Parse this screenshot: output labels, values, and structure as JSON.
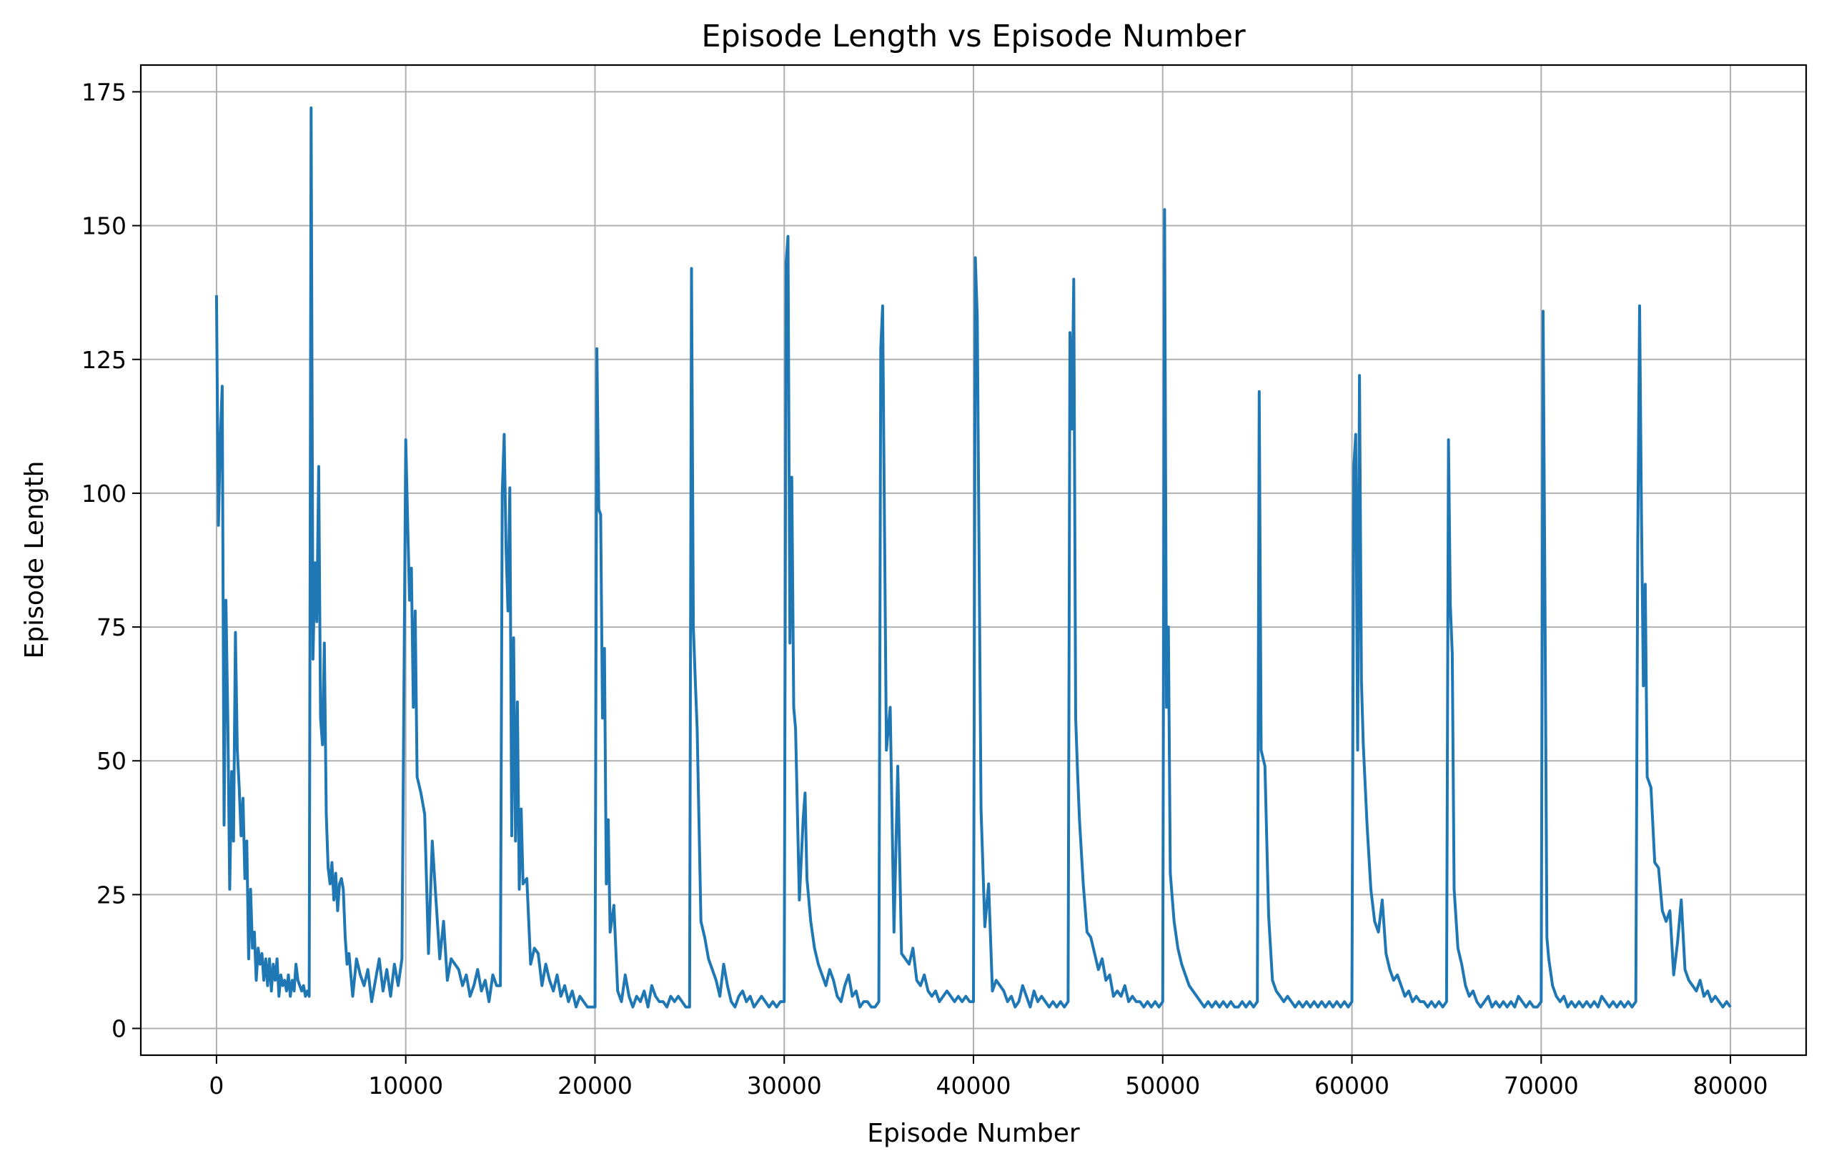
{
  "chart_data": {
    "type": "line",
    "title": "Episode Length vs Episode Number",
    "xlabel": "Episode Number",
    "ylabel": "Episode Length",
    "xlim": [
      -4000,
      84000
    ],
    "ylim": [
      -5,
      180
    ],
    "xticks": [
      0,
      10000,
      20000,
      30000,
      40000,
      50000,
      60000,
      70000,
      80000
    ],
    "xtick_labels": [
      "0",
      "10000",
      "20000",
      "30000",
      "40000",
      "50000",
      "60000",
      "70000",
      "80000"
    ],
    "yticks": [
      0,
      25,
      50,
      75,
      100,
      125,
      150,
      175
    ],
    "ytick_labels": [
      "0",
      "25",
      "50",
      "75",
      "100",
      "125",
      "150",
      "175"
    ],
    "grid": true,
    "line_color": "#1f77b4",
    "series": [
      {
        "x": [
          0,
          100,
          200,
          300,
          400,
          500,
          600,
          700,
          800,
          900,
          1000,
          1100,
          1200,
          1300,
          1400,
          1500,
          1600,
          1700,
          1800,
          1900,
          2000,
          2100,
          2200,
          2300,
          2400,
          2500,
          2600,
          2700,
          2800,
          2900,
          3000,
          3100,
          3200,
          3300,
          3400,
          3500,
          3600,
          3700,
          3800,
          3900,
          4000,
          4100,
          4200,
          4300,
          4400,
          4500,
          4600,
          4700,
          4800,
          4900,
          5000,
          5100,
          5200,
          5300,
          5400,
          5500,
          5600,
          5700,
          5800,
          5900,
          6000,
          6100,
          6200,
          6300,
          6400,
          6500,
          6600,
          6700,
          6800,
          6900,
          7000,
          7200,
          7400,
          7600,
          7800,
          8000,
          8200,
          8400,
          8600,
          8800,
          9000,
          9200,
          9400,
          9600,
          9800,
          10000,
          10100,
          10200,
          10300,
          10400,
          10500,
          10600,
          10800,
          11000,
          11200,
          11400,
          11600,
          11800,
          12000,
          12200,
          12400,
          12600,
          12800,
          13000,
          13200,
          13400,
          13600,
          13800,
          14000,
          14200,
          14400,
          14600,
          14800,
          15000,
          15100,
          15200,
          15300,
          15400,
          15500,
          15600,
          15700,
          15800,
          15900,
          16000,
          16100,
          16200,
          16400,
          16600,
          16800,
          17000,
          17200,
          17400,
          17600,
          17800,
          18000,
          18200,
          18400,
          18600,
          18800,
          19000,
          19200,
          19400,
          19600,
          19800,
          20000,
          20100,
          20200,
          20300,
          20400,
          20500,
          20600,
          20700,
          20800,
          21000,
          21200,
          21400,
          21600,
          21800,
          22000,
          22200,
          22400,
          22600,
          22800,
          23000,
          23200,
          23400,
          23600,
          23800,
          24000,
          24200,
          24400,
          24600,
          24800,
          25000,
          25100,
          25200,
          25300,
          25400,
          25600,
          25800,
          26000,
          26200,
          26400,
          26600,
          26800,
          27000,
          27200,
          27400,
          27600,
          27800,
          28000,
          28200,
          28400,
          28600,
          28800,
          29000,
          29200,
          29400,
          29600,
          29800,
          30000,
          30100,
          30200,
          30300,
          30400,
          30500,
          30600,
          30800,
          31000,
          31100,
          31200,
          31400,
          31600,
          31800,
          32000,
          32200,
          32400,
          32600,
          32800,
          33000,
          33200,
          33400,
          33600,
          33800,
          34000,
          34200,
          34400,
          34600,
          34800,
          35000,
          35100,
          35200,
          35400,
          35600,
          35800,
          36000,
          36200,
          36400,
          36600,
          36800,
          37000,
          37200,
          37400,
          37600,
          37800,
          38000,
          38200,
          38400,
          38600,
          38800,
          39000,
          39200,
          39400,
          39600,
          39800,
          40000,
          40100,
          40200,
          40400,
          40600,
          40800,
          41000,
          41200,
          41400,
          41600,
          41800,
          42000,
          42200,
          42400,
          42600,
          42800,
          43000,
          43200,
          43400,
          43600,
          43800,
          44000,
          44200,
          44400,
          44600,
          44800,
          45000,
          45100,
          45200,
          45300,
          45400,
          45500,
          45600,
          45800,
          46000,
          46200,
          46400,
          46600,
          46800,
          47000,
          47200,
          47400,
          47600,
          47800,
          48000,
          48200,
          48400,
          48600,
          48800,
          49000,
          49200,
          49400,
          49600,
          49800,
          50000,
          50100,
          50200,
          50300,
          50400,
          50600,
          50800,
          51000,
          51200,
          51400,
          51600,
          51800,
          52000,
          52200,
          52400,
          52600,
          52800,
          53000,
          53200,
          53400,
          53600,
          53800,
          54000,
          54200,
          54400,
          54600,
          54800,
          55000,
          55100,
          55200,
          55400,
          55600,
          55800,
          56000,
          56200,
          56400,
          56600,
          56800,
          57000,
          57200,
          57400,
          57600,
          57800,
          58000,
          58200,
          58400,
          58600,
          58800,
          59000,
          59200,
          59400,
          59600,
          59800,
          60000,
          60100,
          60200,
          60300,
          60400,
          60500,
          60600,
          60800,
          61000,
          61200,
          61400,
          61600,
          61800,
          62000,
          62200,
          62400,
          62600,
          62800,
          63000,
          63200,
          63400,
          63600,
          63800,
          64000,
          64200,
          64400,
          64600,
          64800,
          65000,
          65100,
          65200,
          65300,
          65400,
          65600,
          65800,
          66000,
          66200,
          66400,
          66600,
          66800,
          67000,
          67200,
          67400,
          67600,
          67800,
          68000,
          68200,
          68400,
          68600,
          68800,
          69000,
          69200,
          69400,
          69600,
          69800,
          70000,
          70100,
          70200,
          70300,
          70400,
          70600,
          70800,
          71000,
          71200,
          71400,
          71600,
          71800,
          72000,
          72200,
          72400,
          72600,
          72800,
          73000,
          73200,
          73400,
          73600,
          73800,
          74000,
          74200,
          74400,
          74600,
          74800,
          75000,
          75100,
          75200,
          75300,
          75400,
          75500,
          75600,
          75800,
          76000,
          76200,
          76400,
          76600,
          76800,
          77000,
          77200,
          77400,
          77600,
          77800,
          78000,
          78200,
          78400,
          78600,
          78800,
          79000,
          79200,
          79400,
          79600,
          79800,
          80000
        ],
        "y": [
          137,
          94,
          110,
          120,
          38,
          80,
          57,
          26,
          48,
          35,
          74,
          52,
          45,
          36,
          43,
          28,
          35,
          13,
          26,
          15,
          18,
          9,
          15,
          12,
          14,
          9,
          13,
          8,
          13,
          7,
          12,
          9,
          13,
          6,
          10,
          8,
          9,
          7,
          10,
          6,
          9,
          7,
          12,
          9,
          8,
          7,
          8,
          6,
          7,
          6,
          172,
          69,
          87,
          76,
          105,
          58,
          53,
          72,
          40,
          30,
          27,
          31,
          24,
          29,
          22,
          27,
          28,
          26,
          17,
          12,
          14,
          6,
          13,
          10,
          8,
          11,
          5,
          9,
          13,
          7,
          11,
          6,
          12,
          8,
          13,
          110,
          95,
          80,
          86,
          60,
          78,
          47,
          44,
          40,
          14,
          35,
          24,
          13,
          20,
          9,
          13,
          12,
          11,
          8,
          10,
          6,
          8,
          11,
          7,
          9,
          5,
          10,
          8,
          8,
          100,
          111,
          90,
          78,
          101,
          36,
          73,
          35,
          61,
          26,
          41,
          27,
          28,
          12,
          15,
          14,
          8,
          12,
          9,
          7,
          10,
          6,
          8,
          5,
          7,
          4,
          6,
          5,
          4,
          4,
          4,
          127,
          97,
          96,
          58,
          71,
          27,
          39,
          18,
          23,
          7,
          5,
          10,
          6,
          4,
          6,
          5,
          7,
          4,
          8,
          6,
          5,
          5,
          4,
          6,
          5,
          6,
          5,
          4,
          4,
          142,
          75,
          65,
          56,
          20,
          17,
          13,
          11,
          9,
          6,
          12,
          8,
          5,
          4,
          6,
          7,
          5,
          6,
          4,
          5,
          6,
          5,
          4,
          5,
          4,
          5,
          5,
          143,
          148,
          72,
          103,
          60,
          56,
          24,
          39,
          44,
          28,
          20,
          15,
          12,
          10,
          8,
          11,
          9,
          6,
          5,
          8,
          10,
          6,
          7,
          4,
          5,
          5,
          4,
          4,
          5,
          127,
          135,
          52,
          60,
          18,
          49,
          14,
          13,
          12,
          15,
          9,
          8,
          10,
          7,
          6,
          7,
          5,
          6,
          7,
          6,
          5,
          6,
          5,
          6,
          5,
          5,
          144,
          133,
          41,
          19,
          27,
          7,
          9,
          8,
          7,
          5,
          6,
          4,
          5,
          8,
          6,
          4,
          7,
          5,
          6,
          5,
          4,
          5,
          4,
          5,
          4,
          5,
          130,
          112,
          140,
          58,
          48,
          39,
          27,
          18,
          17,
          14,
          11,
          13,
          9,
          10,
          6,
          7,
          6,
          8,
          5,
          6,
          5,
          5,
          4,
          5,
          4,
          5,
          4,
          5,
          153,
          60,
          75,
          29,
          20,
          15,
          12,
          10,
          8,
          7,
          6,
          5,
          4,
          5,
          4,
          5,
          4,
          5,
          4,
          5,
          4,
          4,
          5,
          4,
          5,
          4,
          5,
          119,
          52,
          49,
          21,
          9,
          7,
          6,
          5,
          6,
          5,
          4,
          5,
          4,
          5,
          4,
          5,
          4,
          5,
          4,
          5,
          4,
          5,
          4,
          5,
          4,
          5,
          105,
          111,
          52,
          122,
          65,
          53,
          38,
          26,
          20,
          18,
          24,
          14,
          11,
          9,
          10,
          8,
          6,
          7,
          5,
          6,
          5,
          5,
          4,
          5,
          4,
          5,
          4,
          5,
          110,
          79,
          70,
          26,
          15,
          12,
          8,
          6,
          7,
          5,
          4,
          5,
          6,
          4,
          5,
          4,
          5,
          4,
          5,
          4,
          6,
          5,
          4,
          5,
          4,
          4,
          5,
          134,
          80,
          17,
          13,
          8,
          6,
          5,
          6,
          4,
          5,
          4,
          5,
          4,
          5,
          4,
          5,
          4,
          6,
          5,
          4,
          5,
          4,
          5,
          4,
          5,
          4,
          5,
          90,
          135,
          96,
          64,
          83,
          47,
          45,
          31,
          30,
          22,
          20,
          22,
          10,
          16,
          24,
          11,
          9,
          8,
          7,
          9,
          6,
          7,
          5,
          6,
          5,
          4,
          5,
          4
        ]
      }
    ]
  }
}
